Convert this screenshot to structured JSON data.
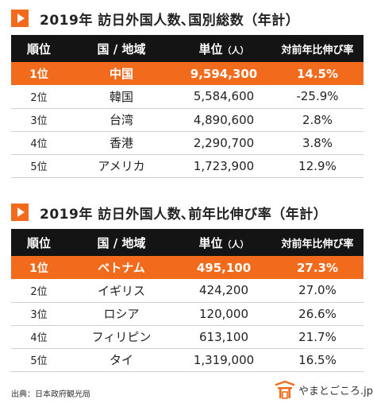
{
  "sections": [
    {
      "title": "2019年 訪日外国人数､国別総数（年計）",
      "headers": {
        "rank": "順位",
        "country": "国 / 地域",
        "count": "単位",
        "unit": "（人）",
        "growth": "対前年比伸び率"
      },
      "rows": [
        {
          "rank": "1位",
          "country": "中国",
          "count": "9,594,300",
          "growth": "14.5%"
        },
        {
          "rank": "2位",
          "country": "韓国",
          "count": "5,584,600",
          "growth": "-25.9%"
        },
        {
          "rank": "3位",
          "country": "台湾",
          "count": "4,890,600",
          "growth": "2.8%"
        },
        {
          "rank": "4位",
          "country": "香港",
          "count": "2,290,700",
          "growth": "3.8%"
        },
        {
          "rank": "5位",
          "country": "アメリカ",
          "count": "1,723,900",
          "growth": "12.9%"
        }
      ]
    },
    {
      "title": "2019年 訪日外国人数､前年比伸び率（年計）",
      "headers": {
        "rank": "順位",
        "country": "国 / 地域",
        "count": "単位",
        "unit": "（人）",
        "growth": "対前年比伸び率"
      },
      "rows": [
        {
          "rank": "1位",
          "country": "ベトナム",
          "count": "495,100",
          "growth": "27.3%"
        },
        {
          "rank": "2位",
          "country": "イギリス",
          "count": "424,200",
          "growth": "27.0%"
        },
        {
          "rank": "3位",
          "country": "ロシア",
          "count": "120,000",
          "growth": "26.6%"
        },
        {
          "rank": "4位",
          "country": "フィリピン",
          "count": "613,100",
          "growth": "21.7%"
        },
        {
          "rank": "5位",
          "country": "タイ",
          "count": "1,319,000",
          "growth": "16.5%"
        }
      ]
    }
  ],
  "footer": {
    "source": "出典：日本政府観光局",
    "logo_text": "やまとごころ.jp",
    "logo_icon": "gate-icon"
  },
  "colors": {
    "accent": "#f26a1b",
    "header_bg": "#141414"
  }
}
